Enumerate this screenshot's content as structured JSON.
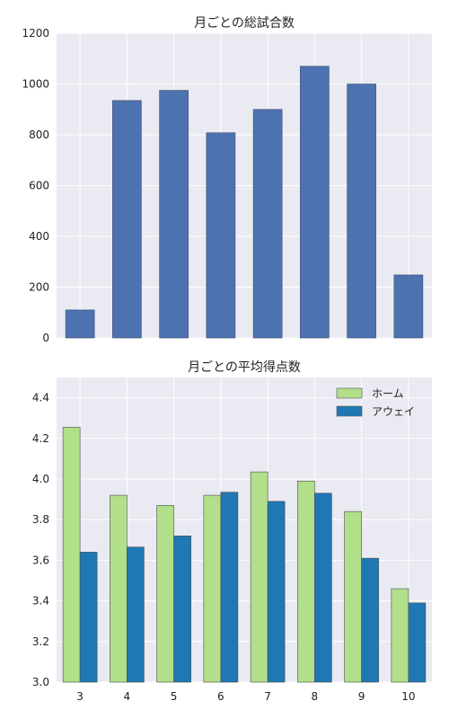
{
  "chart_data": [
    {
      "type": "bar",
      "title": "月ごとの総試合数",
      "xlabel": "",
      "ylabel": "",
      "categories": [
        "3",
        "4",
        "5",
        "6",
        "7",
        "8",
        "9",
        "10"
      ],
      "values": [
        110,
        935,
        975,
        808,
        900,
        1070,
        1000,
        248
      ],
      "ylim": [
        0,
        1200
      ],
      "yticks": [
        "0",
        "200",
        "400",
        "600",
        "800",
        "1000",
        "1200"
      ],
      "show_xticklabels": false,
      "grid": true,
      "colors": [
        "#4c72b0"
      ]
    },
    {
      "type": "bar",
      "title": "月ごとの平均得点数",
      "xlabel": "",
      "ylabel": "",
      "categories": [
        "3",
        "4",
        "5",
        "6",
        "7",
        "8",
        "9",
        "10"
      ],
      "series": [
        {
          "name": "ホーム",
          "values": [
            4.255,
            3.92,
            3.87,
            3.92,
            4.035,
            3.99,
            3.84,
            3.46
          ],
          "color": "#b2df8a"
        },
        {
          "name": "アウェイ",
          "values": [
            3.64,
            3.665,
            3.72,
            3.935,
            3.89,
            3.93,
            3.61,
            3.39
          ],
          "color": "#1f78b4"
        }
      ],
      "ylim": [
        3.0,
        4.5
      ],
      "yticks": [
        "3.0",
        "3.2",
        "3.4",
        "3.6",
        "3.8",
        "4.0",
        "4.2",
        "4.4"
      ],
      "legend": "top-right",
      "grid": true
    }
  ]
}
